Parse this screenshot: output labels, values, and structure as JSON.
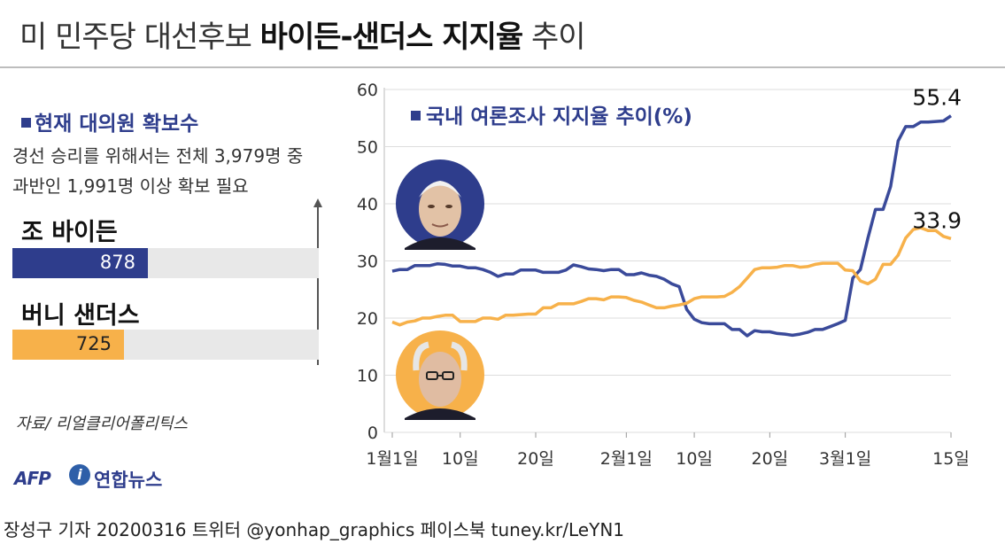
{
  "header": {
    "title_part1": "미 민주당 대선후보 ",
    "title_part2": "바이든-샌더스 지지율",
    "title_part3": " 추이"
  },
  "delegates": {
    "heading": "현재 대의원 확보수",
    "note_line1": "경선 승리를 위해서는 전체 3,979명 중",
    "note_line2": "과반인 1,991명 이상 확보 필요",
    "total_needed": 1991,
    "candidates": [
      {
        "name": "조 바이든",
        "value": 878,
        "value_label": "878",
        "color": "#2e3d8c"
      },
      {
        "name": "버니 샌더스",
        "value": 725,
        "value_label": "725",
        "color": "#f7b14a"
      }
    ]
  },
  "source": "자료/ 리얼클리어폴리틱스",
  "logos": {
    "afp": "AFP",
    "yonhap_mark": "i",
    "yonhap": "연합뉴스"
  },
  "footer": "장성구 기자  20200316 트위터 @yonhap_graphics  페이스북 tuney.kr/LeYN1",
  "portraits": [
    {
      "icon": "biden-portrait-icon",
      "bg": "#2e3d8c"
    },
    {
      "icon": "sanders-portrait-icon",
      "bg": "#f7b14a"
    }
  ],
  "chart_data": {
    "type": "line",
    "title": "국내 여론조사 지지율 추이(%)",
    "ylim": [
      0,
      60
    ],
    "yticks": [
      0,
      10,
      20,
      30,
      40,
      50,
      60
    ],
    "xlim": [
      0,
      74
    ],
    "xticks": [
      {
        "x": 0,
        "label": "1월1일"
      },
      {
        "x": 9,
        "label": "10일"
      },
      {
        "x": 19,
        "label": "20일"
      },
      {
        "x": 31,
        "label": "2월1일"
      },
      {
        "x": 40,
        "label": "10일"
      },
      {
        "x": 50,
        "label": "20일"
      },
      {
        "x": 60,
        "label": "3월1일"
      },
      {
        "x": 74,
        "label": "15일"
      }
    ],
    "series": [
      {
        "name": "바이든",
        "color": "#3a4a9a",
        "end_label": "55.4",
        "points": [
          [
            0,
            28.2
          ],
          [
            1,
            28.5
          ],
          [
            2,
            28.5
          ],
          [
            3,
            29.2
          ],
          [
            4,
            29.2
          ],
          [
            5,
            29.2
          ],
          [
            6,
            29.5
          ],
          [
            7,
            29.4
          ],
          [
            8,
            29.1
          ],
          [
            9,
            29.1
          ],
          [
            10,
            28.8
          ],
          [
            11,
            28.8
          ],
          [
            12,
            28.5
          ],
          [
            13,
            28.0
          ],
          [
            14,
            27.3
          ],
          [
            15,
            27.7
          ],
          [
            16,
            27.7
          ],
          [
            17,
            28.4
          ],
          [
            18,
            28.4
          ],
          [
            19,
            28.4
          ],
          [
            20,
            28.0
          ],
          [
            21,
            28.0
          ],
          [
            22,
            28.0
          ],
          [
            23,
            28.4
          ],
          [
            24,
            29.3
          ],
          [
            25,
            29.0
          ],
          [
            26,
            28.6
          ],
          [
            27,
            28.5
          ],
          [
            28,
            28.3
          ],
          [
            29,
            28.5
          ],
          [
            30,
            28.5
          ],
          [
            31,
            27.6
          ],
          [
            32,
            27.6
          ],
          [
            33,
            27.9
          ],
          [
            34,
            27.5
          ],
          [
            35,
            27.3
          ],
          [
            36,
            26.8
          ],
          [
            37,
            26.0
          ],
          [
            38,
            25.5
          ],
          [
            39,
            21.5
          ],
          [
            40,
            19.8
          ],
          [
            41,
            19.2
          ],
          [
            42,
            19.0
          ],
          [
            43,
            19.0
          ],
          [
            44,
            19.0
          ],
          [
            45,
            18.0
          ],
          [
            46,
            18.0
          ],
          [
            47,
            16.9
          ],
          [
            48,
            17.8
          ],
          [
            49,
            17.6
          ],
          [
            50,
            17.6
          ],
          [
            51,
            17.3
          ],
          [
            52,
            17.2
          ],
          [
            53,
            17.0
          ],
          [
            54,
            17.2
          ],
          [
            55,
            17.5
          ],
          [
            56,
            18.0
          ],
          [
            57,
            18.0
          ],
          [
            58,
            18.5
          ],
          [
            59,
            19.0
          ],
          [
            60,
            19.6
          ],
          [
            61,
            27.0
          ],
          [
            62,
            28.5
          ],
          [
            63,
            34.0
          ],
          [
            64,
            39.0
          ],
          [
            65,
            39.0
          ],
          [
            66,
            43.0
          ],
          [
            67,
            51.0
          ],
          [
            68,
            53.5
          ],
          [
            69,
            53.5
          ],
          [
            70,
            54.3
          ],
          [
            71,
            54.3
          ],
          [
            72,
            54.4
          ],
          [
            73,
            54.5
          ],
          [
            74,
            55.4
          ]
        ]
      },
      {
        "name": "샌더스",
        "color": "#f7b14a",
        "end_label": "33.9",
        "points": [
          [
            0,
            19.3
          ],
          [
            1,
            18.8
          ],
          [
            2,
            19.3
          ],
          [
            3,
            19.5
          ],
          [
            4,
            20.0
          ],
          [
            5,
            20.0
          ],
          [
            6,
            20.3
          ],
          [
            7,
            20.5
          ],
          [
            8,
            20.5
          ],
          [
            9,
            19.4
          ],
          [
            10,
            19.4
          ],
          [
            11,
            19.4
          ],
          [
            12,
            20.0
          ],
          [
            13,
            20.0
          ],
          [
            14,
            19.8
          ],
          [
            15,
            20.5
          ],
          [
            16,
            20.5
          ],
          [
            17,
            20.6
          ],
          [
            18,
            20.7
          ],
          [
            19,
            20.7
          ],
          [
            20,
            21.8
          ],
          [
            21,
            21.8
          ],
          [
            22,
            22.5
          ],
          [
            23,
            22.5
          ],
          [
            24,
            22.5
          ],
          [
            25,
            22.9
          ],
          [
            26,
            23.4
          ],
          [
            27,
            23.4
          ],
          [
            28,
            23.2
          ],
          [
            29,
            23.7
          ],
          [
            30,
            23.7
          ],
          [
            31,
            23.6
          ],
          [
            32,
            23.1
          ],
          [
            33,
            22.8
          ],
          [
            34,
            22.3
          ],
          [
            35,
            21.8
          ],
          [
            36,
            21.8
          ],
          [
            37,
            22.1
          ],
          [
            38,
            22.3
          ],
          [
            39,
            22.6
          ],
          [
            40,
            23.4
          ],
          [
            41,
            23.7
          ],
          [
            42,
            23.7
          ],
          [
            43,
            23.7
          ],
          [
            44,
            23.8
          ],
          [
            45,
            24.5
          ],
          [
            46,
            25.5
          ],
          [
            47,
            27.0
          ],
          [
            48,
            28.5
          ],
          [
            49,
            28.8
          ],
          [
            50,
            28.8
          ],
          [
            51,
            28.9
          ],
          [
            52,
            29.2
          ],
          [
            53,
            29.2
          ],
          [
            54,
            28.9
          ],
          [
            55,
            29.0
          ],
          [
            56,
            29.4
          ],
          [
            57,
            29.6
          ],
          [
            58,
            29.6
          ],
          [
            59,
            29.6
          ],
          [
            60,
            28.4
          ],
          [
            61,
            28.3
          ],
          [
            62,
            26.5
          ],
          [
            63,
            26.0
          ],
          [
            64,
            26.8
          ],
          [
            65,
            29.4
          ],
          [
            66,
            29.4
          ],
          [
            67,
            31.0
          ],
          [
            68,
            34.0
          ],
          [
            69,
            35.5
          ],
          [
            70,
            35.8
          ],
          [
            71,
            35.3
          ],
          [
            72,
            35.3
          ],
          [
            73,
            34.3
          ],
          [
            74,
            33.9
          ]
        ]
      }
    ]
  }
}
